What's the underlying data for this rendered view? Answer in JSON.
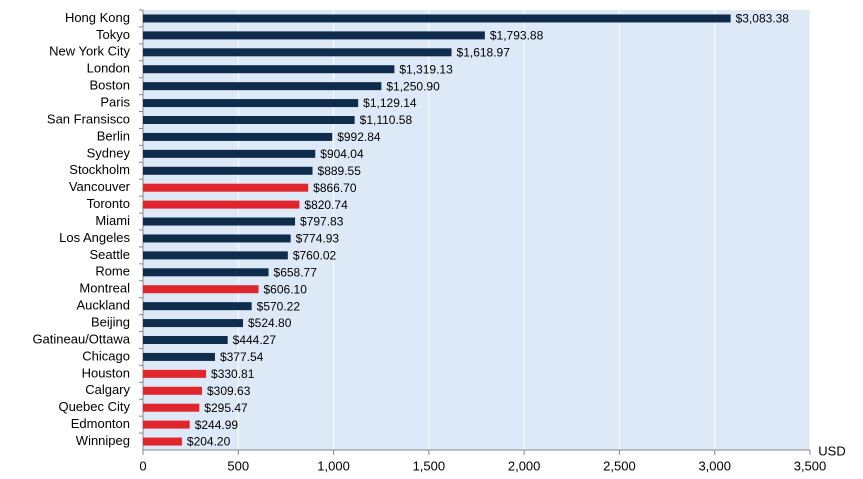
{
  "chart_data": {
    "type": "bar",
    "orientation": "horizontal",
    "categories": [
      "Hong Kong",
      "Tokyo",
      "New York City",
      "London",
      "Boston",
      "Paris",
      "San Fransisco",
      "Berlin",
      "Sydney",
      "Stockholm",
      "Vancouver",
      "Toronto",
      "Miami",
      "Los Angeles",
      "Seattle",
      "Rome",
      "Montreal",
      "Auckland",
      "Beijing",
      "Gatineau/Ottawa",
      "Chicago",
      "Houston",
      "Calgary",
      "Quebec City",
      "Edmonton",
      "Winnipeg"
    ],
    "values": [
      3083.38,
      1793.88,
      1618.97,
      1319.13,
      1250.9,
      1129.14,
      1110.58,
      992.84,
      904.04,
      889.55,
      866.7,
      820.74,
      797.83,
      774.93,
      760.02,
      658.77,
      606.1,
      570.22,
      524.8,
      444.27,
      377.54,
      330.81,
      309.63,
      295.47,
      244.99,
      204.2
    ],
    "value_labels": [
      "$3,083.38",
      "$1,793.88",
      "$1,618.97",
      "$1,319.13",
      "$1,250.90",
      "$1,129.14",
      "$1,110.58",
      "$992.84",
      "$904.04",
      "$889.55",
      "$866.70",
      "$820.74",
      "$797.83",
      "$774.93",
      "$760.02",
      "$658.77",
      "$606.10",
      "$570.22",
      "$524.80",
      "$444.27",
      "$377.54",
      "$330.81",
      "$309.63",
      "$295.47",
      "$244.99",
      "$204.20"
    ],
    "colors": [
      "#0f2c4c",
      "#0f2c4c",
      "#0f2c4c",
      "#0f2c4c",
      "#0f2c4c",
      "#0f2c4c",
      "#0f2c4c",
      "#0f2c4c",
      "#0f2c4c",
      "#0f2c4c",
      "#e1252d",
      "#e1252d",
      "#0f2c4c",
      "#0f2c4c",
      "#0f2c4c",
      "#0f2c4c",
      "#e1252d",
      "#0f2c4c",
      "#0f2c4c",
      "#0f2c4c",
      "#0f2c4c",
      "#e1252d",
      "#e1252d",
      "#e1252d",
      "#e1252d",
      "#e1252d"
    ],
    "x_label": "USD",
    "xlim": [
      0,
      3500
    ],
    "xticks": [
      0,
      500,
      {
        "value": 1000,
        "label": "1,000"
      },
      {
        "value": 1500,
        "label": "1,500"
      },
      {
        "value": 2000,
        "label": "2,000"
      },
      {
        "value": 2500,
        "label": "2,500"
      },
      {
        "value": 3000,
        "label": "3,000"
      },
      {
        "value": 3500,
        "label": "3,500"
      }
    ],
    "grid": true,
    "background": "#dde9f7"
  }
}
